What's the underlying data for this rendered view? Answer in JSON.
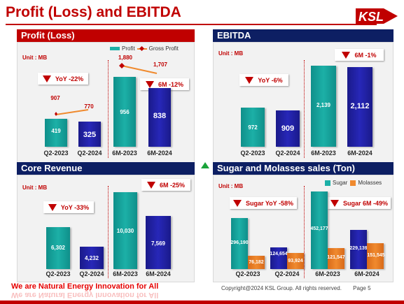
{
  "header": {
    "title": "Profit (Loss) and EBITDA"
  },
  "logo": {
    "text": "KSL",
    "sub": "GROUP"
  },
  "panels": {
    "profit": {
      "title": "Profit (Loss)",
      "unit": "Unit : MB",
      "legend": {
        "profit": "Profit",
        "gross": "Gross Profit"
      },
      "badge_yoy": "YoY -22%",
      "badge_6m": "6M -12%",
      "bars": {
        "q2_2023": "419",
        "q2_2024": "325",
        "m6_2023": "956",
        "m6_2024": "838"
      },
      "gross": {
        "q2_2023": "907",
        "q2_2024": "770",
        "m6_2023": "1,880",
        "m6_2024": "1,707"
      },
      "x": {
        "q2_2023": "Q2-2023",
        "q2_2024": "Q2-2024",
        "m6_2023": "6M-2023",
        "m6_2024": "6M-2024"
      }
    },
    "ebitda": {
      "title": "EBITDA",
      "unit": "Unit : MB",
      "badge_yoy": "YoY -6%",
      "badge_6m": "6M -1%",
      "bars": {
        "q2_2023": "972",
        "q2_2024": "909",
        "m6_2023": "2,139",
        "m6_2024": "2,112"
      },
      "x": {
        "q2_2023": "Q2-2023",
        "q2_2024": "Q2-2024",
        "m6_2023": "6M-2023",
        "m6_2024": "6M-2024"
      }
    },
    "core": {
      "title": "Core Revenue",
      "unit": "Unit : MB",
      "badge_yoy": "YoY -33%",
      "badge_6m": "6M -25%",
      "bars": {
        "q2_2023": "6,302",
        "q2_2024": "4,232",
        "m6_2023": "10,030",
        "m6_2024": "7,569"
      },
      "x": {
        "q2_2023": "Q2-2023",
        "q2_2024": "Q2-2024",
        "m6_2023": "6M-2023",
        "m6_2024": "6M-2024"
      }
    },
    "sugar": {
      "title": "Sugar and Molasses sales (Ton)",
      "unit": "Unit : MB",
      "legend": {
        "sugar": "Sugar",
        "molasses": "Molasses"
      },
      "badge_yoy": "Sugar YoY -58%",
      "badge_6m": "Sugar 6M -49%",
      "sugar": {
        "q2_2023": "296,190",
        "q2_2024": "124,654",
        "m6_2023": "452,177",
        "m6_2024": "229,139"
      },
      "molasses": {
        "q2_2023": "76,182",
        "q2_2024": "93,924",
        "m6_2023": "121,547",
        "m6_2024": "151,545"
      },
      "x": {
        "q2_2023": "Q2-2023",
        "q2_2024": "Q2-2024",
        "m6_2023": "6M-2023",
        "m6_2024": "6M-2024"
      }
    }
  },
  "footer": {
    "slogan": "We are Natural Energy Innovation for All",
    "copyright": "Copyright@2024 KSL Group. All rights reserved.",
    "page": "Page 5"
  },
  "colors": {
    "brand_red": "#c00000",
    "navy": "#0d1f63",
    "teal": "#1cb0a7",
    "bar_navy": "#2727b8",
    "orange": "#f08a2e"
  }
}
